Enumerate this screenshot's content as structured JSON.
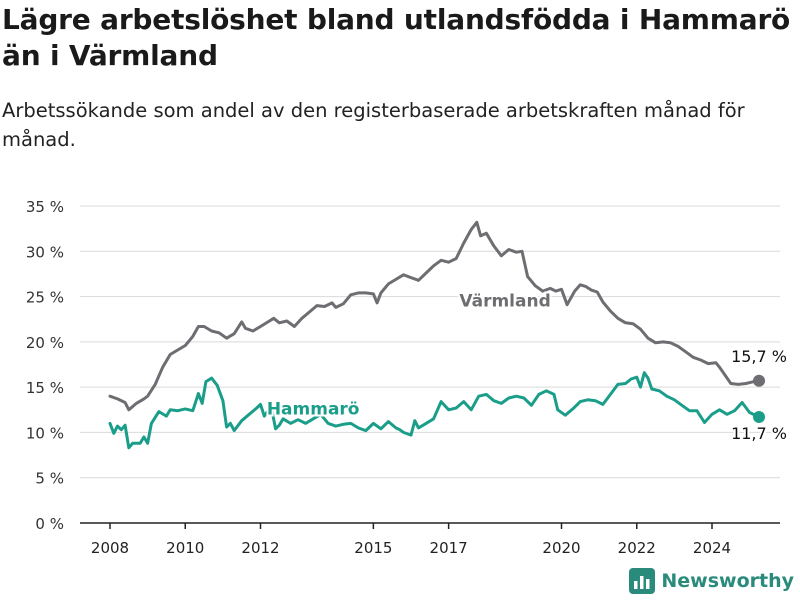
{
  "title": "Lägre arbetslöshet bland utlandsfödda i Hammarö än i Värmland",
  "subtitle": "Arbetssökande som andel av den registerbaserade arbetskraften månad för månad.",
  "brand": {
    "name": "Newsworthy",
    "icon": "bar-chart-logo-icon"
  },
  "colors": {
    "hammaro": "#1a9e8a",
    "varmland": "#6d6d72",
    "grid": "#d9d9d9",
    "text": "#222222"
  },
  "chart_data": {
    "type": "line",
    "x_unit": "year",
    "xlim": [
      2007.5,
      2025.9
    ],
    "ylim": [
      0,
      35
    ],
    "grid": true,
    "yticks": [
      0,
      5,
      10,
      15,
      20,
      25,
      30,
      35
    ],
    "ytick_labels": [
      "0 %",
      "5 %",
      "10 %",
      "15 %",
      "20 %",
      "25 %",
      "30 %",
      "35 %"
    ],
    "xticks": [
      2008,
      2010,
      2012,
      2015,
      2017,
      2020,
      2022,
      2024
    ],
    "xtick_labels": [
      "2008",
      "2010",
      "2012",
      "2015",
      "2017",
      "2020",
      "2022",
      "2024"
    ],
    "series": [
      {
        "name": "Värmland",
        "color": "#6d6d72",
        "end_label": "15,7 %",
        "points": [
          [
            2008.0,
            14.0
          ],
          [
            2008.2,
            13.7
          ],
          [
            2008.4,
            13.3
          ],
          [
            2008.5,
            12.5
          ],
          [
            2008.7,
            13.2
          ],
          [
            2008.9,
            13.7
          ],
          [
            2009.0,
            14.0
          ],
          [
            2009.2,
            15.3
          ],
          [
            2009.4,
            17.2
          ],
          [
            2009.6,
            18.6
          ],
          [
            2009.8,
            19.1
          ],
          [
            2010.0,
            19.6
          ],
          [
            2010.2,
            20.6
          ],
          [
            2010.35,
            21.7
          ],
          [
            2010.5,
            21.7
          ],
          [
            2010.7,
            21.2
          ],
          [
            2010.9,
            21.0
          ],
          [
            2011.1,
            20.4
          ],
          [
            2011.3,
            20.9
          ],
          [
            2011.5,
            22.2
          ],
          [
            2011.6,
            21.5
          ],
          [
            2011.8,
            21.2
          ],
          [
            2012.0,
            21.7
          ],
          [
            2012.2,
            22.2
          ],
          [
            2012.35,
            22.6
          ],
          [
            2012.5,
            22.1
          ],
          [
            2012.7,
            22.3
          ],
          [
            2012.9,
            21.7
          ],
          [
            2013.1,
            22.6
          ],
          [
            2013.3,
            23.3
          ],
          [
            2013.5,
            24.0
          ],
          [
            2013.7,
            23.9
          ],
          [
            2013.9,
            24.3
          ],
          [
            2014.0,
            23.8
          ],
          [
            2014.2,
            24.2
          ],
          [
            2014.4,
            25.2
          ],
          [
            2014.6,
            25.4
          ],
          [
            2014.8,
            25.4
          ],
          [
            2015.0,
            25.3
          ],
          [
            2015.1,
            24.3
          ],
          [
            2015.2,
            25.4
          ],
          [
            2015.4,
            26.4
          ],
          [
            2015.6,
            26.9
          ],
          [
            2015.8,
            27.4
          ],
          [
            2016.0,
            27.1
          ],
          [
            2016.2,
            26.8
          ],
          [
            2016.4,
            27.6
          ],
          [
            2016.6,
            28.4
          ],
          [
            2016.8,
            29.0
          ],
          [
            2017.0,
            28.8
          ],
          [
            2017.2,
            29.2
          ],
          [
            2017.4,
            30.9
          ],
          [
            2017.6,
            32.4
          ],
          [
            2017.75,
            33.2
          ],
          [
            2017.85,
            31.7
          ],
          [
            2018.0,
            32.0
          ],
          [
            2018.2,
            30.6
          ],
          [
            2018.4,
            29.5
          ],
          [
            2018.6,
            30.2
          ],
          [
            2018.8,
            29.9
          ],
          [
            2018.95,
            30.0
          ],
          [
            2019.1,
            27.2
          ],
          [
            2019.3,
            26.2
          ],
          [
            2019.5,
            25.6
          ],
          [
            2019.7,
            25.9
          ],
          [
            2019.85,
            25.6
          ],
          [
            2020.0,
            25.8
          ],
          [
            2020.15,
            24.1
          ],
          [
            2020.35,
            25.6
          ],
          [
            2020.5,
            26.3
          ],
          [
            2020.65,
            26.1
          ],
          [
            2020.8,
            25.7
          ],
          [
            2020.95,
            25.5
          ],
          [
            2021.1,
            24.4
          ],
          [
            2021.3,
            23.4
          ],
          [
            2021.5,
            22.6
          ],
          [
            2021.7,
            22.1
          ],
          [
            2021.9,
            22.0
          ],
          [
            2022.1,
            21.4
          ],
          [
            2022.3,
            20.4
          ],
          [
            2022.5,
            19.9
          ],
          [
            2022.7,
            20.0
          ],
          [
            2022.9,
            19.9
          ],
          [
            2023.1,
            19.5
          ],
          [
            2023.3,
            18.9
          ],
          [
            2023.5,
            18.3
          ],
          [
            2023.7,
            18.0
          ],
          [
            2023.9,
            17.6
          ],
          [
            2024.1,
            17.7
          ],
          [
            2024.2,
            17.2
          ],
          [
            2024.35,
            16.3
          ],
          [
            2024.5,
            15.4
          ],
          [
            2024.7,
            15.3
          ],
          [
            2024.9,
            15.4
          ],
          [
            2025.1,
            15.6
          ],
          [
            2025.25,
            15.7
          ]
        ]
      },
      {
        "name": "Hammarö",
        "color": "#1a9e8a",
        "end_label": "11,7 %",
        "points": [
          [
            2008.0,
            11.0
          ],
          [
            2008.1,
            9.9
          ],
          [
            2008.2,
            10.7
          ],
          [
            2008.3,
            10.3
          ],
          [
            2008.4,
            10.8
          ],
          [
            2008.5,
            8.3
          ],
          [
            2008.6,
            8.8
          ],
          [
            2008.8,
            8.8
          ],
          [
            2008.9,
            9.5
          ],
          [
            2009.0,
            8.8
          ],
          [
            2009.1,
            11.0
          ],
          [
            2009.3,
            12.3
          ],
          [
            2009.5,
            11.8
          ],
          [
            2009.6,
            12.5
          ],
          [
            2009.8,
            12.4
          ],
          [
            2010.0,
            12.6
          ],
          [
            2010.2,
            12.4
          ],
          [
            2010.35,
            14.3
          ],
          [
            2010.45,
            13.2
          ],
          [
            2010.55,
            15.6
          ],
          [
            2010.7,
            16.0
          ],
          [
            2010.85,
            15.2
          ],
          [
            2011.0,
            13.5
          ],
          [
            2011.1,
            10.6
          ],
          [
            2011.2,
            11.0
          ],
          [
            2011.3,
            10.2
          ],
          [
            2011.5,
            11.3
          ],
          [
            2011.7,
            12.0
          ],
          [
            2011.9,
            12.7
          ],
          [
            2012.0,
            13.1
          ],
          [
            2012.1,
            11.8
          ],
          [
            2012.2,
            12.4
          ],
          [
            2012.3,
            12.5
          ],
          [
            2012.4,
            10.4
          ],
          [
            2012.5,
            10.8
          ],
          [
            2012.6,
            11.5
          ],
          [
            2012.8,
            11.0
          ],
          [
            2013.0,
            11.4
          ],
          [
            2013.2,
            11.0
          ],
          [
            2013.4,
            11.5
          ],
          [
            2013.6,
            12.0
          ],
          [
            2013.8,
            11.0
          ],
          [
            2014.0,
            10.7
          ],
          [
            2014.2,
            10.9
          ],
          [
            2014.4,
            11.0
          ],
          [
            2014.6,
            10.5
          ],
          [
            2014.8,
            10.2
          ],
          [
            2015.0,
            11.0
          ],
          [
            2015.2,
            10.4
          ],
          [
            2015.4,
            11.2
          ],
          [
            2015.6,
            10.5
          ],
          [
            2015.7,
            10.3
          ],
          [
            2015.8,
            10.0
          ],
          [
            2016.0,
            9.7
          ],
          [
            2016.1,
            11.3
          ],
          [
            2016.2,
            10.5
          ],
          [
            2016.4,
            11.0
          ],
          [
            2016.6,
            11.5
          ],
          [
            2016.8,
            13.4
          ],
          [
            2017.0,
            12.5
          ],
          [
            2017.2,
            12.7
          ],
          [
            2017.4,
            13.4
          ],
          [
            2017.6,
            12.5
          ],
          [
            2017.8,
            14.0
          ],
          [
            2018.0,
            14.2
          ],
          [
            2018.2,
            13.5
          ],
          [
            2018.4,
            13.2
          ],
          [
            2018.6,
            13.8
          ],
          [
            2018.8,
            14.0
          ],
          [
            2019.0,
            13.8
          ],
          [
            2019.2,
            13.0
          ],
          [
            2019.4,
            14.2
          ],
          [
            2019.6,
            14.6
          ],
          [
            2019.8,
            14.2
          ],
          [
            2019.9,
            12.5
          ],
          [
            2020.1,
            11.9
          ],
          [
            2020.3,
            12.6
          ],
          [
            2020.5,
            13.4
          ],
          [
            2020.7,
            13.6
          ],
          [
            2020.9,
            13.5
          ],
          [
            2021.1,
            13.1
          ],
          [
            2021.3,
            14.2
          ],
          [
            2021.5,
            15.3
          ],
          [
            2021.7,
            15.4
          ],
          [
            2021.85,
            15.9
          ],
          [
            2022.0,
            16.1
          ],
          [
            2022.1,
            15.0
          ],
          [
            2022.2,
            16.6
          ],
          [
            2022.3,
            16.0
          ],
          [
            2022.4,
            14.8
          ],
          [
            2022.6,
            14.6
          ],
          [
            2022.8,
            14.0
          ],
          [
            2023.0,
            13.6
          ],
          [
            2023.2,
            13.0
          ],
          [
            2023.4,
            12.4
          ],
          [
            2023.6,
            12.4
          ],
          [
            2023.8,
            11.1
          ],
          [
            2024.0,
            12.0
          ],
          [
            2024.2,
            12.5
          ],
          [
            2024.4,
            12.0
          ],
          [
            2024.6,
            12.4
          ],
          [
            2024.8,
            13.3
          ],
          [
            2025.0,
            12.2
          ],
          [
            2025.25,
            11.7
          ]
        ]
      }
    ],
    "line_labels": [
      {
        "series": "Värmland",
        "text": "Värmland",
        "x": 2018.5,
        "y": 23.9
      },
      {
        "series": "Hammarö",
        "text": "Hammarö",
        "x": 2013.4,
        "y": 12.0
      }
    ],
    "end_labels": [
      {
        "series": "Värmland",
        "text": "15,7 %",
        "x": 2025.25,
        "y": 17.8
      },
      {
        "series": "Hammarö",
        "text": "11,7 %",
        "x": 2025.25,
        "y": 9.3
      }
    ]
  }
}
